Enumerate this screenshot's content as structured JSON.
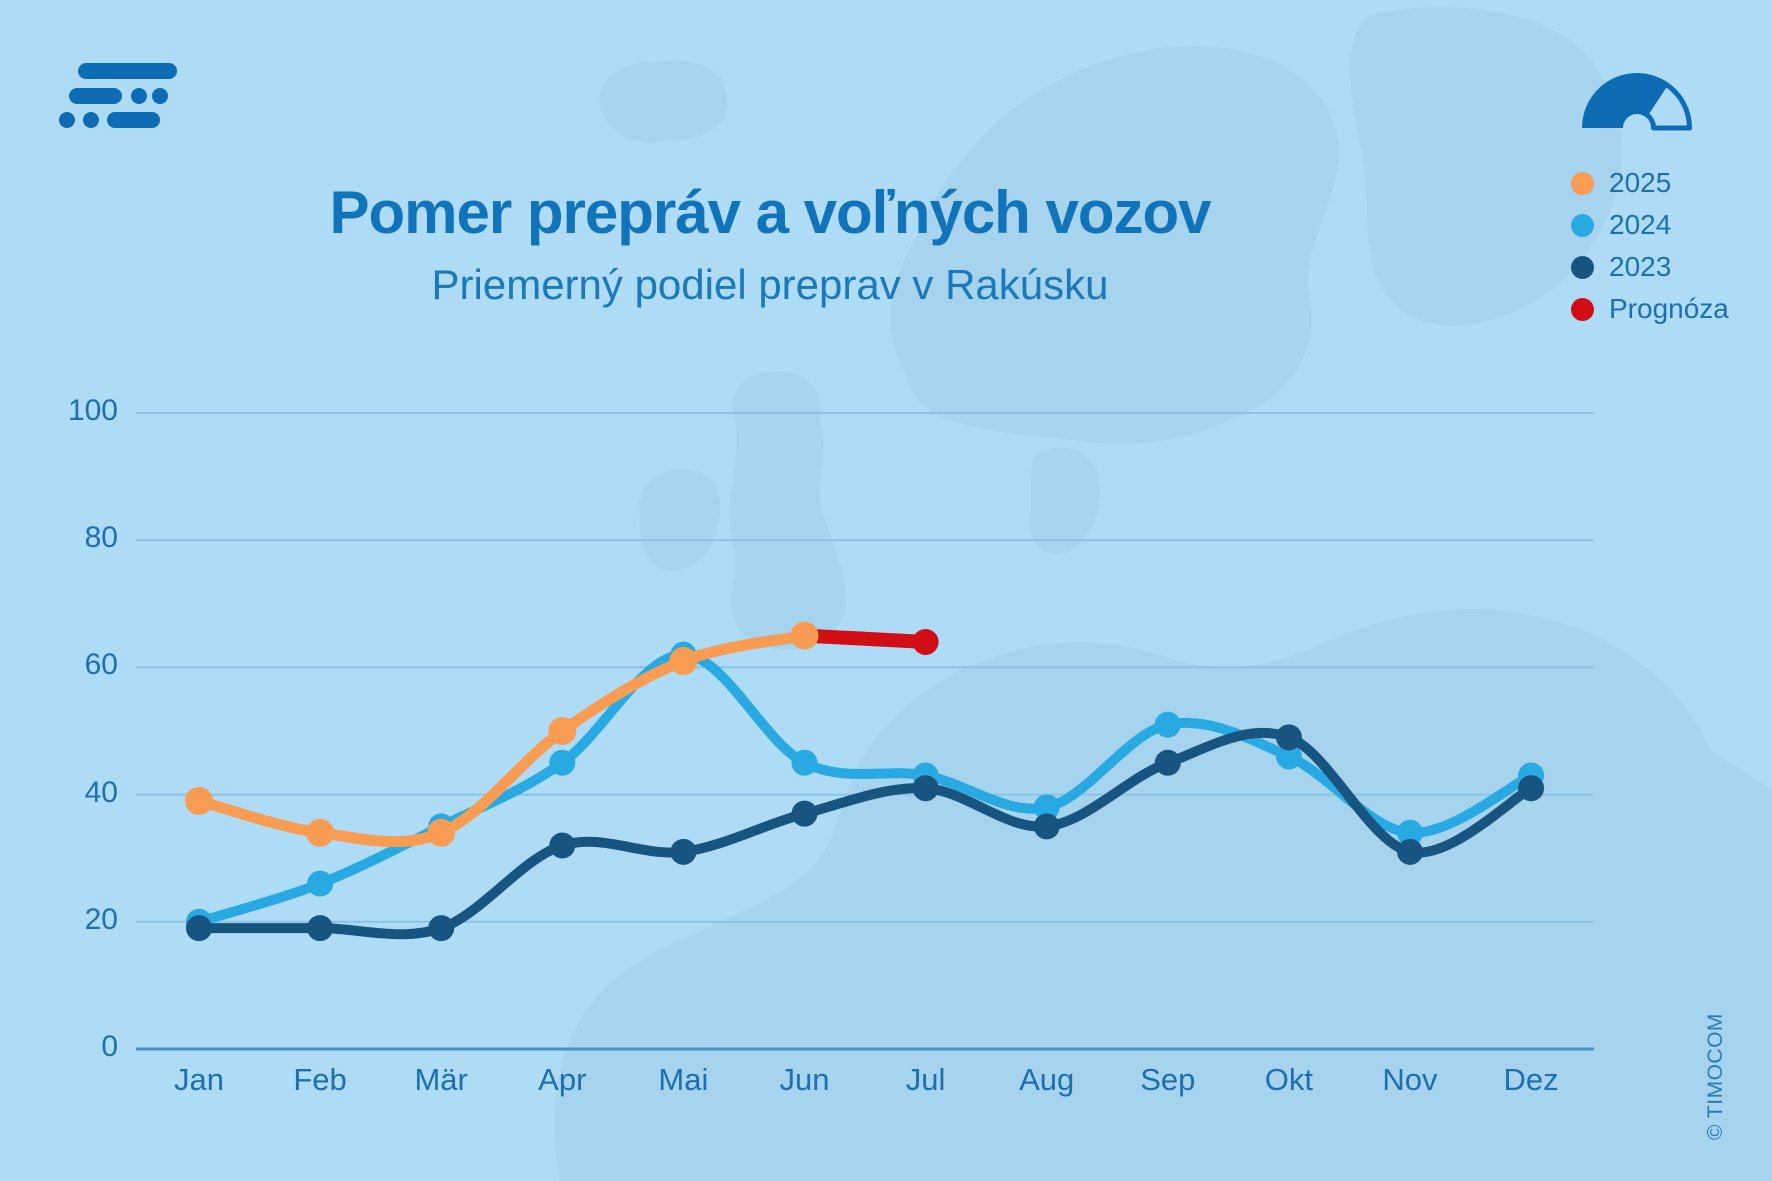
{
  "page": {
    "background_color": "#aedcf7",
    "map_color": "#a6d3ee",
    "brand_color": "#0e6cb5",
    "copyright": "© TIMOCOM"
  },
  "header": {
    "title": "Pomer prepráv a voľných vozov",
    "subtitle": "Priemerný podiel preprav v Rakúsku",
    "title_color": "#1173b9"
  },
  "legend": {
    "position": "top-right",
    "items": [
      {
        "label": "2025",
        "color": "#f89c54"
      },
      {
        "label": "2024",
        "color": "#29a9e1"
      },
      {
        "label": "2023",
        "color": "#175480"
      },
      {
        "label": "Prognóza",
        "color": "#d10e15"
      }
    ]
  },
  "icons": {
    "gauge_icon": "speedometer-gauge",
    "logo_icon": "timocom-logo-mark"
  },
  "chart_data": {
    "type": "line",
    "title": "Pomer prepráv a voľných vozov",
    "subtitle": "Priemerný podiel preprav v Rakúsku",
    "categories": [
      "Jan",
      "Feb",
      "Mär",
      "Apr",
      "Mai",
      "Jun",
      "Jul",
      "Aug",
      "Sep",
      "Okt",
      "Nov",
      "Dez"
    ],
    "ylim": [
      0,
      100
    ],
    "yticks": [
      0,
      20,
      40,
      60,
      80,
      100
    ],
    "grid": "horizontal",
    "legend_position": "top-right",
    "axis_text_color": "#1d6fb1",
    "gridline_color": "#8cc3e4",
    "baseline_color": "#4a8fc4",
    "series": [
      {
        "name": "2025",
        "color": "#f89c54",
        "values": [
          39,
          34,
          34,
          50,
          61,
          65,
          null,
          null,
          null,
          null,
          null,
          null
        ]
      },
      {
        "name": "2024",
        "color": "#29a9e1",
        "values": [
          20,
          26,
          35,
          45,
          62,
          45,
          43,
          38,
          51,
          46,
          34,
          43
        ]
      },
      {
        "name": "2023",
        "color": "#175480",
        "values": [
          19,
          19,
          19,
          32,
          31,
          37,
          41,
          35,
          45,
          49,
          31,
          41
        ]
      },
      {
        "name": "Prognóza",
        "color": "#d10e15",
        "values": [
          null,
          null,
          null,
          null,
          null,
          65,
          64,
          null,
          null,
          null,
          null,
          null
        ]
      }
    ]
  }
}
